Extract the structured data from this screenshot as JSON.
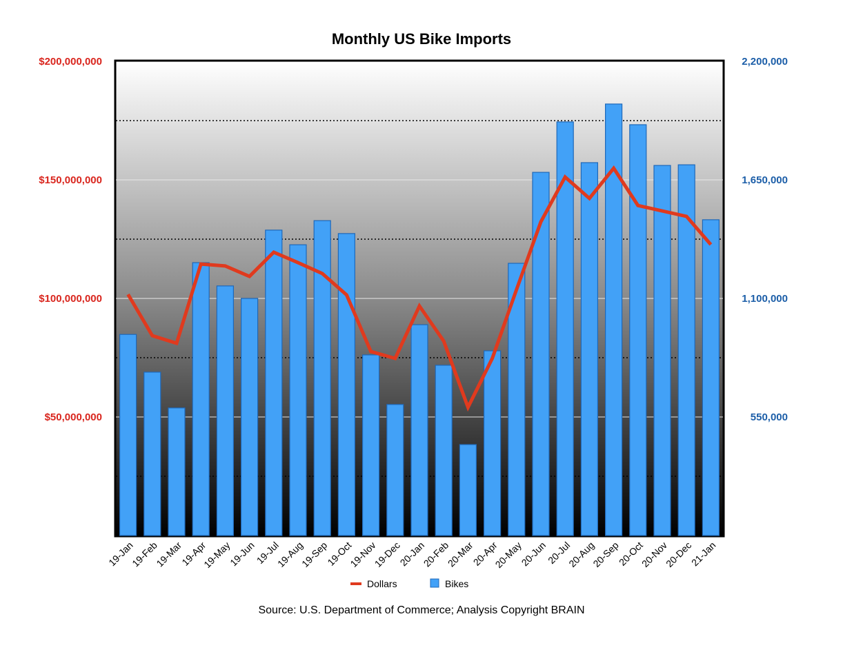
{
  "chart_data": {
    "type": "bar+line",
    "title": "Monthly US Bike Imports",
    "source": "Source: U.S. Department of Commerce; Analysis Copyright BRAIN",
    "categories": [
      "19-Jan",
      "19-Feb",
      "19-Mar",
      "19-Apr",
      "19-May",
      "19-Jun",
      "19-Jul",
      "19-Aug",
      "19-Sep",
      "19-Oct",
      "19-Nov",
      "19-Dec",
      "20-Jan",
      "20-Feb",
      "20-Mar",
      "20-Apr",
      "20-May",
      "20-Jun",
      "20-Jul",
      "20-Aug",
      "20-Sep",
      "20-Oct",
      "20-Nov",
      "20-Dec",
      "21-Jan"
    ],
    "series": [
      {
        "name": "Dollars",
        "type": "line",
        "axis": "left",
        "color": "#e03a1e",
        "values": [
          101700000,
          84300000,
          81100000,
          114500000,
          113700000,
          109300000,
          119500000,
          115100000,
          110500000,
          101500000,
          77600000,
          74700000,
          96800000,
          82000000,
          54100000,
          74700000,
          103800000,
          132300000,
          151200000,
          142200000,
          154900000,
          139200000,
          136900000,
          134600000,
          122700000
        ]
      },
      {
        "name": "Bikes",
        "type": "bar",
        "axis": "right",
        "color": "#42a1f7",
        "values": [
          933000,
          758000,
          592000,
          1266000,
          1158000,
          1100000,
          1417000,
          1349000,
          1461000,
          1401000,
          838000,
          608000,
          978000,
          790000,
          422000,
          857000,
          1263000,
          1685000,
          1919000,
          1730000,
          2002000,
          1906000,
          1717000,
          1720000,
          1465000
        ]
      }
    ],
    "left_axis": {
      "ylim": [
        0,
        200000000
      ],
      "ticks": [
        "$50,000,000",
        "$100,000,000",
        "$150,000,000",
        "$200,000,000"
      ],
      "color": "#d9251d"
    },
    "right_axis": {
      "ylim": [
        0,
        2200000
      ],
      "ticks": [
        "550,000",
        "1,100,000",
        "1,650,000",
        "2,200,000"
      ],
      "color": "#1c5ea8"
    },
    "grid": true,
    "legend": {
      "placement": "bottom",
      "items": [
        "Dollars",
        "Bikes"
      ]
    }
  }
}
